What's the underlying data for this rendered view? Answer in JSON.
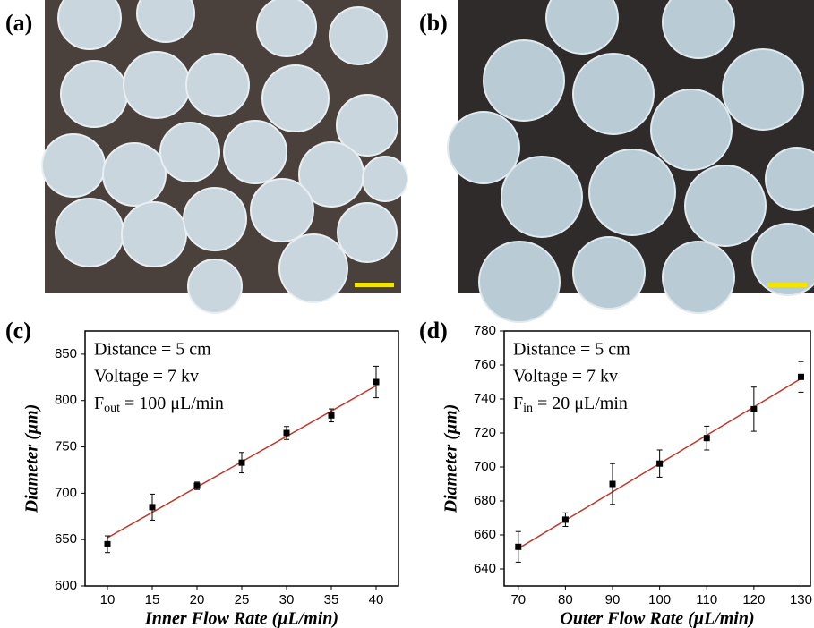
{
  "photos": [
    {
      "label": "(a)"
    },
    {
      "label": "(b)"
    }
  ],
  "chart_data": [
    {
      "type": "scatter",
      "panel_label": "(c)",
      "x_label": "Inner Flow Rate (μL/min)",
      "y_label": "Diameter (μm)",
      "annotations": [
        "Distance = 5 cm",
        "Voltage = 7 kv",
        {
          "main": "F",
          "sub": "out",
          "rest": " = 100 μL/min"
        }
      ],
      "x": [
        10,
        15,
        20,
        25,
        30,
        35,
        40
      ],
      "series": [
        {
          "color": "#000000",
          "values": [
            645,
            685,
            708,
            733,
            765,
            784,
            820
          ],
          "errors": [
            9,
            14,
            4,
            11,
            7,
            7,
            17
          ]
        }
      ],
      "fit": {
        "color": "#c0392b",
        "x": [
          10,
          40
        ],
        "values": [
          652,
          816
        ]
      },
      "xlim": [
        7.5,
        42.5
      ],
      "ylim": [
        600,
        875
      ],
      "xticks": [
        10,
        15,
        20,
        25,
        30,
        35,
        40
      ],
      "yticks": [
        600,
        650,
        700,
        750,
        800,
        850
      ]
    },
    {
      "type": "scatter",
      "panel_label": "(d)",
      "x_label": "Outer Flow Rate (μL/min)",
      "y_label": "Diameter (μm)",
      "annotations": [
        "Distance = 5 cm",
        "Voltage = 7 kv",
        {
          "main": "F",
          "sub": "in",
          "rest": " = 20 μL/min"
        }
      ],
      "x": [
        70,
        80,
        90,
        100,
        110,
        120,
        130
      ],
      "series": [
        {
          "color": "#000000",
          "values": [
            653,
            669,
            690,
            702,
            717,
            734,
            753
          ],
          "errors": [
            9,
            4,
            12,
            8,
            7,
            13,
            9
          ]
        }
      ],
      "fit": {
        "color": "#c0392b",
        "x": [
          70,
          130
        ],
        "values": [
          652,
          752
        ]
      },
      "xlim": [
        67,
        132
      ],
      "ylim": [
        630,
        780
      ],
      "xticks": [
        70,
        80,
        90,
        100,
        110,
        120,
        130
      ],
      "yticks": [
        640,
        660,
        680,
        700,
        720,
        740,
        760,
        780
      ]
    }
  ]
}
